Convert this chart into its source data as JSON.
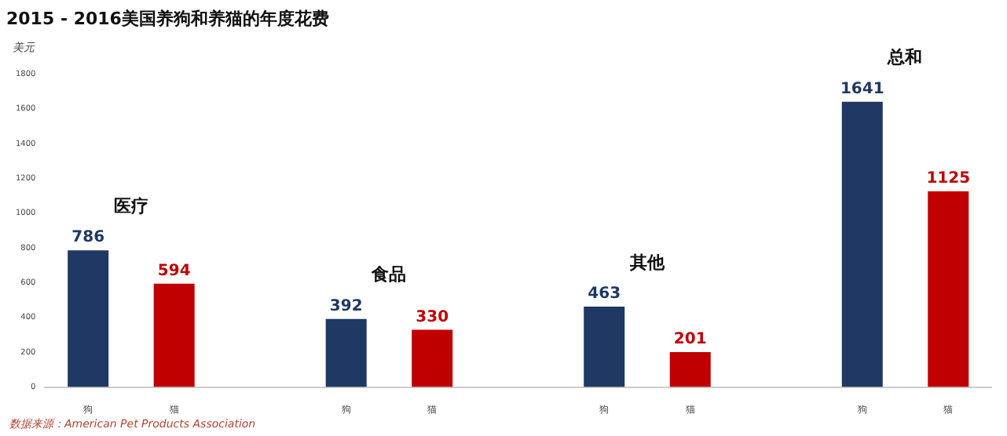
{
  "chart_data": {
    "type": "bar",
    "title": "2015 - 2016美国养狗和养猫的年度花费",
    "ylabel": "美元",
    "categories": [
      "狗",
      "猫",
      null,
      "狗",
      "猫",
      null,
      "狗",
      "猫",
      null,
      "狗",
      "猫"
    ],
    "values": [
      786,
      594,
      null,
      392,
      330,
      null,
      463,
      201,
      null,
      1641,
      1125
    ],
    "colors": [
      "#1f3864",
      "#c00000",
      "#ffffff",
      "#1f3864",
      "#c00000",
      "#ffffff",
      "#1f3864",
      "#c00000",
      "#ffffff",
      "#1f3864",
      "#c00000"
    ],
    "ylim": [
      0,
      1800
    ],
    "yticks": [
      0,
      200,
      400,
      600,
      800,
      1000,
      1200,
      1400,
      1600,
      1800
    ],
    "grid": false,
    "legend": false,
    "data_labels": true,
    "annotations": [
      "医疗",
      "食品",
      "其他",
      "总和",
      "数据来源：American Pet Products Association"
    ]
  }
}
